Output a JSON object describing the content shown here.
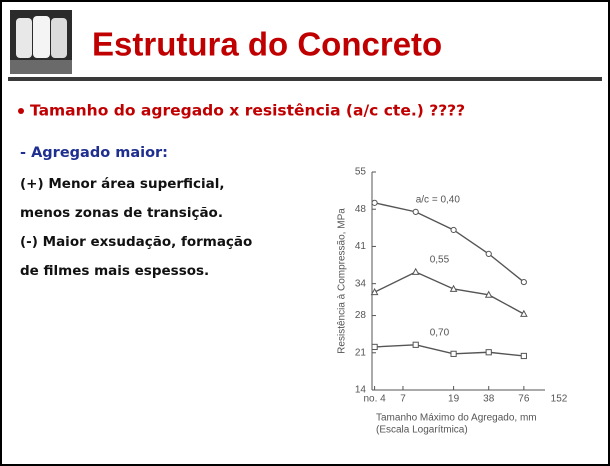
{
  "header": {
    "title": "Estrutura do Concreto"
  },
  "bullet": "Tamanho do agregado x resistência (a/c cte.) ????",
  "subheading": "- Agregado maior:",
  "lines": [
    "(+) Menor área superficial,",
    "menos zonas de transição.",
    "(-) Maior exsudação, formação",
    "de filmes mais espessos."
  ],
  "chart_data": {
    "type": "line",
    "ylabel": "Resistência à Compressão, MPa",
    "xlabel": "Tamanho Máximo do Agregado, mm",
    "xlabel_note": "(Escala Logarítmica)",
    "xscale": "log",
    "xlim": [
      3.8,
      152
    ],
    "xticks": [
      {
        "value": 4,
        "label": "no. 4"
      },
      7,
      19,
      38,
      76,
      152
    ],
    "ylim": [
      14,
      55
    ],
    "yticks": [
      55,
      48,
      41,
      34,
      28,
      21,
      14
    ],
    "series": [
      {
        "name": "a/c = 0,40",
        "color": "#555555",
        "marker": "circle",
        "x": [
          4,
          9,
          19,
          38,
          76
        ],
        "values": [
          49.2,
          47.5,
          44.1,
          39.6,
          34.3
        ]
      },
      {
        "name": "0,55",
        "color": "#555555",
        "marker": "triangle",
        "x": [
          4,
          9,
          19,
          38,
          76
        ],
        "values": [
          32.4,
          36.2,
          33,
          31.9,
          28.3
        ]
      },
      {
        "name": "0,70",
        "color": "#555555",
        "marker": "square",
        "x": [
          4,
          9,
          19,
          38,
          76
        ],
        "values": [
          22.1,
          22.5,
          20.8,
          21.1,
          20.4
        ]
      }
    ]
  }
}
